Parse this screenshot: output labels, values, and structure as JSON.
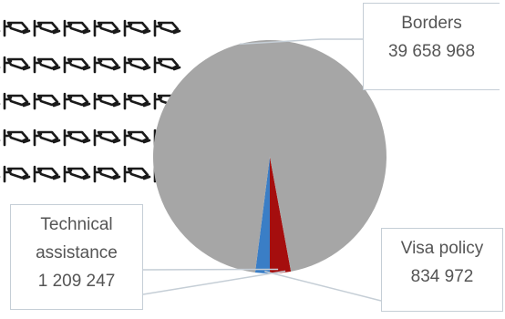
{
  "chart_data": {
    "type": "pie",
    "slices": [
      {
        "label": "Borders",
        "value": 39658968,
        "value_text": "39 658 968",
        "color": "#a6a6a6"
      },
      {
        "label": "Technical assistance",
        "label_lines": [
          "Technical",
          "assistance"
        ],
        "value": 1209247,
        "value_text": "1 209 247",
        "color": "#a50e0e"
      },
      {
        "label": "Visa policy",
        "value": 834972,
        "value_text": "834 972",
        "color": "#3a7ec6"
      }
    ],
    "legend": "none",
    "data_labels": "callouts"
  },
  "decoration": {
    "icon": "surveillance-camera-icon",
    "rows": 5,
    "color": "#1a1a1a"
  },
  "colors": {
    "callout_border": "#c5ced6",
    "leader_line": "#c5ced6",
    "text": "#555555"
  }
}
